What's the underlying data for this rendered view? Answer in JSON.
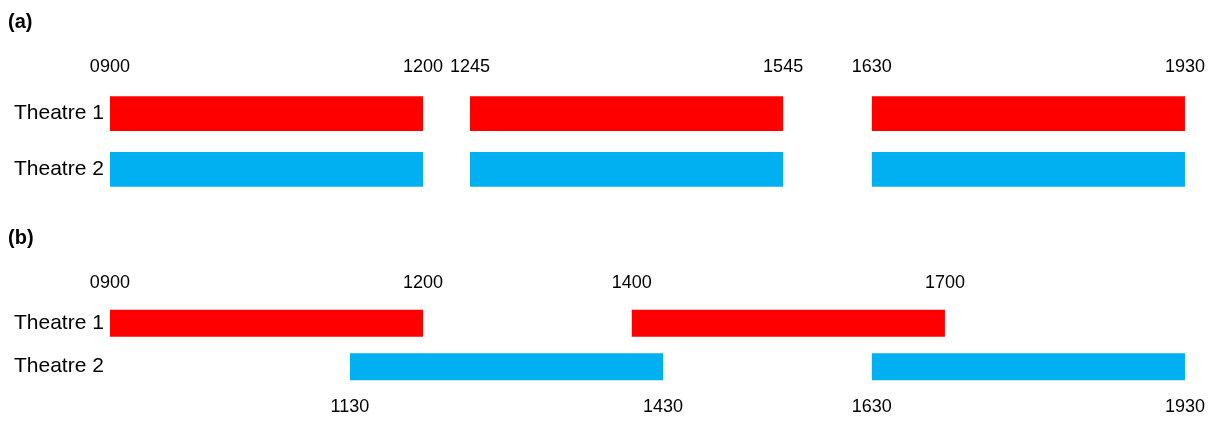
{
  "chart_data": [
    {
      "type": "bar",
      "title": "(a)",
      "orientation": "horizontal",
      "categories": [
        "Theatre 1",
        "Theatre 2"
      ],
      "xlim": [
        900,
        1930
      ],
      "xticks": [
        {
          "value": 900,
          "label": "0900"
        },
        1200,
        1245,
        1545,
        1630,
        1930
      ],
      "grid": false,
      "legend": false,
      "series": [
        {
          "base": [
            900,
            900
          ],
          "values": [
            300,
            300
          ],
          "colors": [
            "#ff0000",
            "#00b0f0"
          ]
        },
        {
          "base": [
            1245,
            1245
          ],
          "values": [
            300,
            300
          ],
          "colors": [
            "#ff0000",
            "#00b0f0"
          ]
        },
        {
          "base": [
            1630,
            1630
          ],
          "values": [
            300,
            300
          ],
          "colors": [
            "#ff0000",
            "#00b0f0"
          ]
        }
      ]
    },
    {
      "type": "bar",
      "title": "(b)",
      "orientation": "horizontal",
      "categories": [
        "Theatre 1",
        "Theatre 2"
      ],
      "xlim": [
        900,
        1930
      ],
      "xticks": [
        1130,
        1430,
        1630,
        1930
      ],
      "x2lim": [
        900,
        1930
      ],
      "x2ticks": [
        {
          "value": 900,
          "label": "0900"
        },
        1200,
        1400,
        1700
      ],
      "grid": false,
      "legend": false,
      "series": [
        {
          "axis": "x2",
          "base": [
            900,
            null
          ],
          "values": [
            300,
            null
          ],
          "color": "#ff0000"
        },
        {
          "axis": "x2",
          "base": [
            1400,
            null
          ],
          "values": [
            300,
            null
          ],
          "color": "#ff0000"
        },
        {
          "base": [
            null,
            1130
          ],
          "values": [
            null,
            300
          ],
          "color": "#00b0f0"
        },
        {
          "base": [
            null,
            1630
          ],
          "values": [
            null,
            300
          ],
          "color": "#00b0f0"
        }
      ]
    }
  ]
}
